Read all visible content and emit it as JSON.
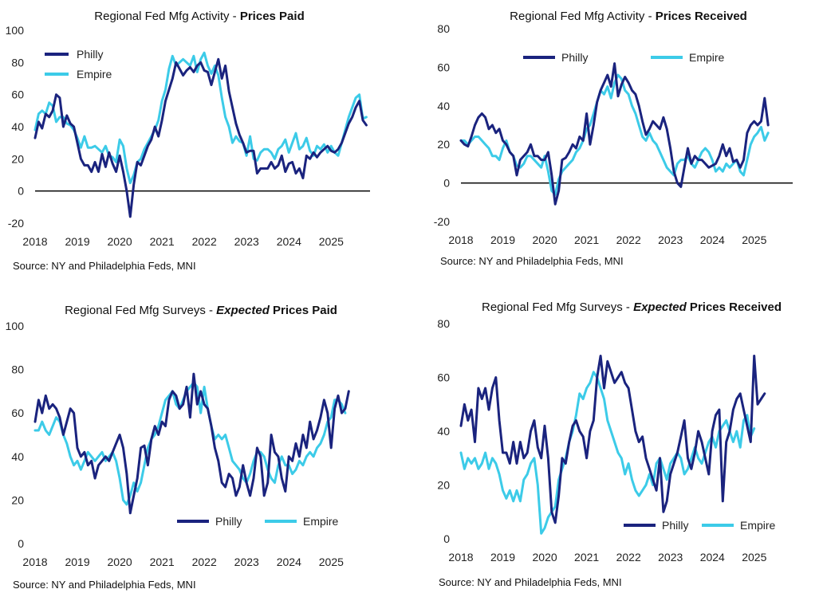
{
  "colors": {
    "philly": "#1a237e",
    "empire": "#3ccbe8",
    "zero_line": "#000000"
  },
  "chart_data": [
    {
      "type": "line",
      "title": {
        "prefix": "Regional Fed Mfg Activity - ",
        "em": "Prices Paid"
      },
      "source": "Source: NY and Philadelphia Feds, MNI",
      "ylim": [
        -20,
        100
      ],
      "yticks": [
        -20,
        0,
        20,
        40,
        60,
        80,
        100
      ],
      "xlim": [
        2018,
        2025.917
      ],
      "xticks": [
        "2018",
        "2019",
        "2020",
        "2021",
        "2022",
        "2023",
        "2024",
        "2025"
      ],
      "legend_position": "top-left",
      "zero_line": true,
      "series": [
        {
          "name": "Philly",
          "color_key": "philly",
          "start": 2018,
          "step": 0.0833,
          "values": [
            33,
            43,
            39,
            48,
            46,
            50,
            60,
            58,
            40,
            47,
            42,
            40,
            30,
            20,
            16,
            16,
            12,
            18,
            12,
            23,
            15,
            24,
            17,
            12,
            22,
            12,
            0,
            -16,
            4,
            18,
            16,
            22,
            28,
            32,
            40,
            34,
            44,
            56,
            63,
            70,
            80,
            76,
            72,
            75,
            77,
            74,
            78,
            80,
            75,
            74,
            66,
            74,
            82,
            70,
            78,
            62,
            52,
            42,
            35,
            30,
            24,
            25,
            25,
            11,
            14,
            14,
            14,
            18,
            14,
            16,
            22,
            12,
            17,
            18,
            11,
            14,
            8,
            22,
            20,
            24,
            21,
            24,
            26,
            28,
            25,
            24,
            26,
            30,
            36,
            42,
            46,
            52,
            56,
            44,
            41
          ]
        },
        {
          "name": "Empire",
          "color_key": "empire",
          "start": 2018,
          "step": 0.0833,
          "values": [
            38,
            48,
            50,
            48,
            55,
            53,
            43,
            46,
            46,
            42,
            41,
            38,
            33,
            27,
            34,
            27,
            27,
            28,
            26,
            24,
            28,
            22,
            21,
            18,
            32,
            28,
            14,
            5,
            10,
            18,
            20,
            26,
            30,
            34,
            38,
            44,
            56,
            63,
            76,
            84,
            78,
            80,
            82,
            80,
            78,
            84,
            74,
            82,
            86,
            78,
            73,
            78,
            72,
            58,
            46,
            40,
            30,
            34,
            31,
            30,
            22,
            34,
            20,
            19,
            24,
            26,
            26,
            24,
            20,
            26,
            28,
            32,
            24,
            30,
            36,
            26,
            28,
            33,
            25,
            22,
            28,
            26,
            29,
            24,
            28,
            24,
            22,
            30,
            38,
            46,
            52,
            58,
            60,
            45,
            46
          ]
        }
      ]
    },
    {
      "type": "line",
      "title": {
        "prefix": "Regional Fed Mfg Activity - ",
        "em": "Prices Received"
      },
      "source": "Source: NY and Philadelphia Feds, MNI",
      "ylim": [
        -20,
        80
      ],
      "yticks": [
        -20,
        0,
        20,
        40,
        60,
        80
      ],
      "xlim": [
        2018,
        2025.917
      ],
      "xticks": [
        "2018",
        "2019",
        "2020",
        "2021",
        "2022",
        "2023",
        "2024",
        "2025"
      ],
      "legend_position": "top-center",
      "zero_line": true,
      "series": [
        {
          "name": "Philly",
          "color_key": "philly",
          "start": 2018,
          "step": 0.0833,
          "values": [
            22,
            20,
            19,
            24,
            30,
            34,
            36,
            34,
            28,
            30,
            26,
            28,
            22,
            20,
            16,
            14,
            4,
            12,
            14,
            16,
            20,
            14,
            14,
            12,
            12,
            16,
            4,
            -11,
            -4,
            12,
            13,
            16,
            20,
            18,
            24,
            22,
            36,
            20,
            30,
            42,
            48,
            52,
            56,
            50,
            62,
            45,
            51,
            55,
            52,
            48,
            46,
            40,
            32,
            25,
            28,
            32,
            30,
            28,
            34,
            28,
            18,
            6,
            0,
            -2,
            8,
            18,
            10,
            14,
            12,
            12,
            10,
            8,
            9,
            10,
            14,
            20,
            14,
            18,
            11,
            12,
            8,
            12,
            26,
            30,
            32,
            30,
            32,
            44,
            30
          ]
        },
        {
          "name": "Empire",
          "color_key": "empire",
          "start": 2018,
          "step": 0.0833,
          "values": [
            22,
            22,
            20,
            22,
            24,
            24,
            22,
            20,
            18,
            14,
            14,
            12,
            18,
            22,
            16,
            14,
            9,
            8,
            10,
            14,
            14,
            12,
            10,
            8,
            14,
            6,
            -4,
            -6,
            2,
            6,
            8,
            10,
            12,
            16,
            18,
            22,
            28,
            30,
            36,
            42,
            48,
            46,
            50,
            44,
            52,
            56,
            54,
            48,
            46,
            40,
            36,
            30,
            24,
            22,
            26,
            22,
            20,
            16,
            12,
            8,
            6,
            4,
            10,
            12,
            12,
            14,
            10,
            8,
            12,
            16,
            18,
            16,
            12,
            6,
            8,
            6,
            10,
            8,
            10,
            12,
            6,
            4,
            12,
            20,
            24,
            26,
            29,
            22,
            26
          ]
        }
      ]
    },
    {
      "type": "line",
      "title": {
        "prefix": "Regional Fed Mfg Surveys - ",
        "em": "Expected",
        "suffix": " Prices Paid"
      },
      "source": "Source: NY and Philadelphia Feds, MNI",
      "ylim": [
        0,
        100
      ],
      "yticks": [
        0,
        20,
        40,
        60,
        80,
        100
      ],
      "xlim": [
        2018,
        2025.917
      ],
      "xticks": [
        "2018",
        "2019",
        "2020",
        "2021",
        "2022",
        "2023",
        "2024",
        "2025"
      ],
      "legend_position": "bottom-right",
      "zero_line": false,
      "series": [
        {
          "name": "Philly",
          "color_key": "philly",
          "start": 2018,
          "step": 0.0833,
          "values": [
            56,
            66,
            60,
            68,
            62,
            64,
            62,
            58,
            50,
            56,
            62,
            60,
            44,
            40,
            42,
            36,
            38,
            30,
            36,
            38,
            40,
            38,
            42,
            46,
            50,
            44,
            32,
            14,
            22,
            30,
            44,
            45,
            36,
            48,
            54,
            50,
            56,
            54,
            66,
            70,
            68,
            62,
            64,
            72,
            58,
            78,
            64,
            70,
            64,
            62,
            54,
            44,
            38,
            28,
            26,
            32,
            30,
            22,
            26,
            36,
            28,
            22,
            30,
            44,
            40,
            22,
            28,
            50,
            42,
            40,
            30,
            24,
            40,
            38,
            46,
            40,
            50,
            44,
            56,
            48,
            52,
            58,
            66,
            60,
            44,
            62,
            68,
            60,
            62,
            70
          ]
        },
        {
          "name": "Empire",
          "color_key": "empire",
          "start": 2018,
          "step": 0.0833,
          "values": [
            52,
            52,
            56,
            52,
            50,
            54,
            58,
            56,
            50,
            46,
            40,
            36,
            38,
            34,
            38,
            42,
            40,
            38,
            40,
            42,
            38,
            40,
            42,
            38,
            30,
            20,
            18,
            22,
            28,
            24,
            28,
            36,
            44,
            48,
            50,
            54,
            60,
            66,
            68,
            70,
            64,
            62,
            66,
            70,
            72,
            74,
            72,
            60,
            72,
            62,
            54,
            48,
            50,
            48,
            50,
            44,
            38,
            36,
            34,
            30,
            28,
            32,
            38,
            42,
            42,
            40,
            34,
            30,
            28,
            36,
            40,
            36,
            36,
            32,
            34,
            38,
            36,
            40,
            42,
            40,
            44,
            46,
            50,
            56,
            58,
            66,
            66,
            64,
            60
          ]
        }
      ]
    },
    {
      "type": "line",
      "title": {
        "prefix": "Regional Fed Mfg Surveys - ",
        "em": "Expected",
        "suffix": " Prices Received"
      },
      "source": "Source: NY and Philadelphia Feds, MNI",
      "ylim": [
        0,
        80
      ],
      "yticks": [
        0,
        20,
        40,
        60,
        80
      ],
      "xlim": [
        2018,
        2025.917
      ],
      "xticks": [
        "2018",
        "2019",
        "2020",
        "2021",
        "2022",
        "2023",
        "2024",
        "2025"
      ],
      "legend_position": "bottom-right",
      "zero_line": false,
      "series": [
        {
          "name": "Philly",
          "color_key": "philly",
          "start": 2018,
          "step": 0.0833,
          "values": [
            42,
            50,
            44,
            48,
            36,
            56,
            52,
            56,
            48,
            56,
            60,
            44,
            32,
            32,
            28,
            36,
            28,
            36,
            30,
            32,
            40,
            44,
            34,
            30,
            42,
            30,
            10,
            6,
            16,
            30,
            28,
            36,
            42,
            44,
            40,
            38,
            30,
            40,
            44,
            60,
            68,
            56,
            66,
            62,
            58,
            60,
            62,
            58,
            56,
            48,
            40,
            36,
            38,
            30,
            26,
            22,
            18,
            30,
            10,
            14,
            24,
            28,
            32,
            38,
            44,
            30,
            26,
            32,
            40,
            36,
            30,
            24,
            40,
            46,
            48,
            14,
            36,
            40,
            48,
            52,
            54,
            48,
            42,
            36,
            68,
            50,
            52,
            54
          ]
        },
        {
          "name": "Empire",
          "color_key": "empire",
          "start": 2018,
          "step": 0.0833,
          "values": [
            32,
            26,
            30,
            28,
            30,
            26,
            28,
            32,
            26,
            30,
            28,
            24,
            18,
            15,
            18,
            14,
            18,
            14,
            22,
            24,
            28,
            30,
            20,
            2,
            4,
            8,
            10,
            12,
            22,
            26,
            30,
            36,
            40,
            46,
            54,
            52,
            56,
            58,
            62,
            60,
            56,
            52,
            44,
            40,
            36,
            32,
            30,
            24,
            28,
            22,
            18,
            16,
            18,
            20,
            24,
            20,
            28,
            30,
            26,
            22,
            28,
            30,
            32,
            30,
            24,
            26,
            30,
            34,
            30,
            28,
            32,
            36,
            38,
            34,
            40,
            42,
            44,
            40,
            36,
            40,
            34,
            44,
            46,
            38,
            41
          ]
        }
      ]
    }
  ]
}
